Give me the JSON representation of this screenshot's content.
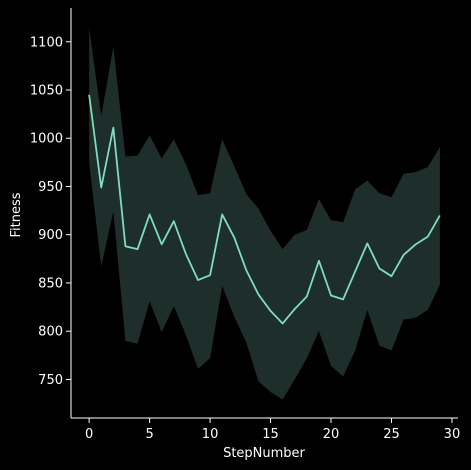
{
  "chart_data": {
    "type": "line",
    "title": "",
    "xlabel": "StepNumber",
    "ylabel": "Fitness",
    "xlim": [
      -1.5,
      30.5
    ],
    "ylim": [
      710,
      1135
    ],
    "xticks": [
      0,
      5,
      10,
      15,
      20,
      25,
      30
    ],
    "yticks": [
      750,
      800,
      850,
      900,
      950,
      1000,
      1050,
      1100
    ],
    "grid": false,
    "legend": "none",
    "colors": {
      "background": "#000000",
      "axis": "#ffffff",
      "line": "#7fdcc0",
      "band": "#1e2e2a"
    },
    "series": [
      {
        "x": [
          0,
          1,
          2,
          3,
          4,
          5,
          6,
          7,
          8,
          9,
          10,
          11,
          12,
          13,
          14,
          15,
          16,
          17,
          18,
          19,
          20,
          21,
          22,
          23,
          24,
          25,
          26,
          27,
          28,
          29
        ],
        "mean": [
          1045,
          949,
          1011,
          888,
          885,
          921,
          890,
          914,
          880,
          853,
          858,
          921,
          897,
          863,
          838,
          821,
          808,
          823,
          836,
          873,
          837,
          833,
          862,
          891,
          865,
          857,
          879,
          890,
          898,
          920
        ],
        "upper": [
          1115,
          1023,
          1095,
          981,
          982,
          1003,
          979,
          999,
          973,
          941,
          943,
          999,
          971,
          942,
          927,
          904,
          885,
          900,
          905,
          937,
          915,
          913,
          947,
          956,
          943,
          939,
          963,
          965,
          970,
          991
        ],
        "lower": [
          975,
          867,
          924,
          790,
          787,
          831,
          799,
          826,
          796,
          761,
          772,
          847,
          815,
          788,
          748,
          737,
          729,
          750,
          772,
          800,
          764,
          753,
          780,
          822,
          785,
          780,
          812,
          814,
          822,
          848
        ]
      }
    ]
  }
}
